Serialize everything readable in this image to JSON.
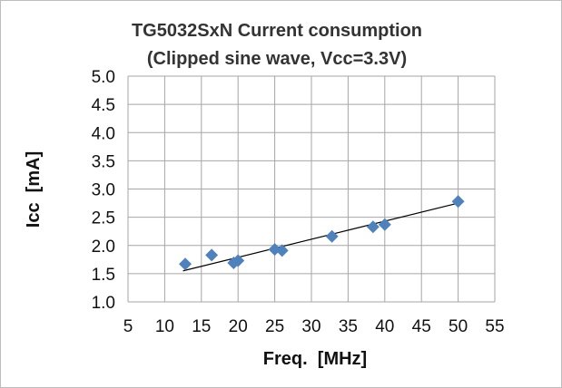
{
  "chart_data": {
    "type": "scatter",
    "title": "TG5032SxN   Current consumption",
    "subtitle": "(Clipped sine wave, Vcc=3.3V)",
    "xlabel": "Freq.  [MHz]",
    "ylabel": "Icc  [mA]",
    "xlim": [
      5,
      55
    ],
    "ylim": [
      1.0,
      5.0
    ],
    "xticks": [
      "5",
      "10",
      "15",
      "20",
      "25",
      "30",
      "35",
      "40",
      "45",
      "50",
      "55"
    ],
    "yticks": [
      "1.0",
      "1.5",
      "2.0",
      "2.5",
      "3.0",
      "3.5",
      "4.0",
      "4.5",
      "5.0"
    ],
    "grid": true,
    "marker": "diamond",
    "marker_color": "#4f81bd",
    "trendline": {
      "type": "linear",
      "x": [
        12.5,
        50
      ],
      "y": [
        1.55,
        2.75
      ],
      "color": "#000000"
    },
    "points": [
      {
        "x": 12.8,
        "y": 1.67
      },
      {
        "x": 16.4,
        "y": 1.83
      },
      {
        "x": 19.4,
        "y": 1.69
      },
      {
        "x": 20.0,
        "y": 1.73
      },
      {
        "x": 25.0,
        "y": 1.93
      },
      {
        "x": 26.0,
        "y": 1.91
      },
      {
        "x": 32.8,
        "y": 2.16
      },
      {
        "x": 38.4,
        "y": 2.33
      },
      {
        "x": 40.0,
        "y": 2.37
      },
      {
        "x": 50.0,
        "y": 2.78
      }
    ]
  }
}
